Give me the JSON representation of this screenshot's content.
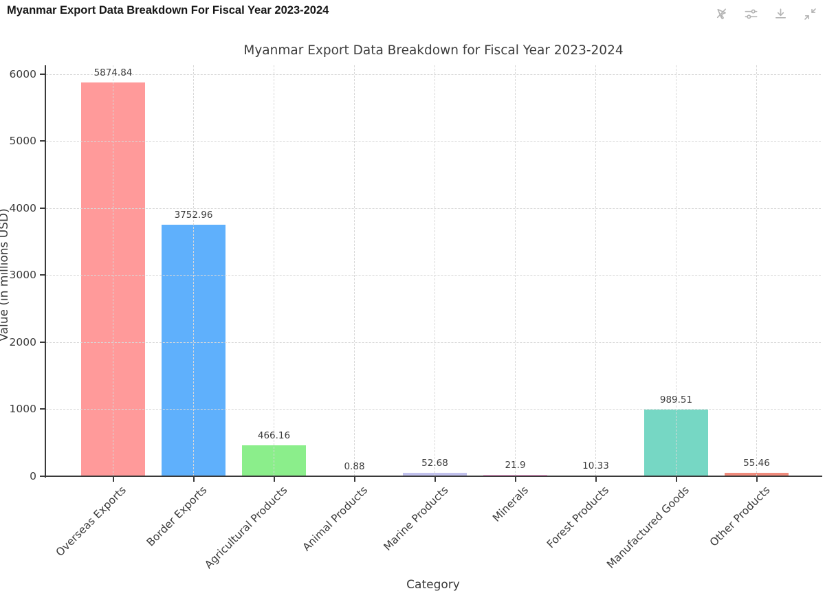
{
  "window": {
    "title": "Myanmar Export Data Breakdown For Fiscal Year 2023-2024",
    "toolbar_icons": [
      "pointer-off",
      "sliders",
      "download",
      "collapse"
    ]
  },
  "chart_data": {
    "type": "bar",
    "title": "Myanmar Export Data Breakdown for Fiscal Year 2023-2024",
    "xlabel": "Category",
    "ylabel": "Value (in millions USD)",
    "categories": [
      "Overseas Exports",
      "Border Exports",
      "Agricultural Products",
      "Animal Products",
      "Marine Products",
      "Minerals",
      "Forest Products",
      "Manufactured Goods",
      "Other Products"
    ],
    "values": [
      5874.84,
      3752.96,
      466.16,
      0.88,
      52.68,
      21.9,
      10.33,
      989.51,
      55.46
    ],
    "bar_labels": [
      "5874.84",
      "3752.96",
      "466.16",
      "0.88",
      "52.68",
      "21.9",
      "10.33",
      "989.51",
      "55.46"
    ],
    "bar_colors": [
      "#ff9a9a",
      "#5fb0fc",
      "#8bee8b",
      "#ffcc99",
      "#c1c1ed",
      "#ffa6de",
      "#aed072",
      "#76d7c4",
      "#f08b7c"
    ],
    "yticks": [
      0,
      1000,
      2000,
      3000,
      4000,
      5000,
      6000
    ],
    "ylim": [
      0,
      6130
    ],
    "grid": "dashed, horizontal and vertical",
    "legend": "none"
  },
  "colors": {
    "background": "#ffffff",
    "axis": "#3a3a3a",
    "grid": "#d8d8d8",
    "chart_text": "#3c3c3c",
    "toolbar_icon": "#b3b3b3",
    "window_title": "#161616"
  }
}
